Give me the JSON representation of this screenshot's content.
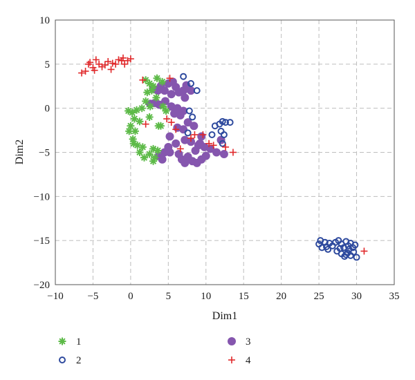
{
  "chart_data": {
    "type": "scatter",
    "title": "",
    "xlabel": "Dim1",
    "ylabel": "Dim2",
    "xlim": [
      -10,
      35
    ],
    "ylim": [
      -20,
      10
    ],
    "xticks": [
      -10,
      -5,
      0,
      5,
      10,
      15,
      20,
      25,
      30,
      35
    ],
    "yticks": [
      -20,
      -15,
      -10,
      -5,
      0,
      5,
      10
    ],
    "xtick_labels": [
      "−10",
      "−5",
      "0",
      "5",
      "10",
      "15",
      "20",
      "25",
      "30",
      "35"
    ],
    "ytick_labels": [
      "−20",
      "−15",
      "−10",
      "−5",
      "0",
      "5",
      "10"
    ],
    "grid": true,
    "legend_position": "below",
    "series": [
      {
        "name": "1",
        "marker": "asterisk",
        "color": "#5dba48",
        "points": [
          [
            2.0,
            3.2
          ],
          [
            2.5,
            2.8
          ],
          [
            3.0,
            2.5
          ],
          [
            3.5,
            3.4
          ],
          [
            4.2,
            3.0
          ],
          [
            2.2,
            1.8
          ],
          [
            2.8,
            2.0
          ],
          [
            3.4,
            1.2
          ],
          [
            2.0,
            0.8
          ],
          [
            2.6,
            0.2
          ],
          [
            1.5,
            0.0
          ],
          [
            0.8,
            -0.2
          ],
          [
            0.2,
            -0.5
          ],
          [
            -0.3,
            -0.3
          ],
          [
            0.5,
            -1.2
          ],
          [
            1.2,
            -1.5
          ],
          [
            0.0,
            -2.0
          ],
          [
            0.6,
            -2.6
          ],
          [
            -0.2,
            -2.6
          ],
          [
            0.3,
            -3.5
          ],
          [
            0.4,
            -4.0
          ],
          [
            0.9,
            -4.2
          ],
          [
            1.6,
            -4.4
          ],
          [
            1.2,
            -5.0
          ],
          [
            1.8,
            -5.6
          ],
          [
            2.5,
            -5.2
          ],
          [
            3.0,
            -4.6
          ],
          [
            3.6,
            -4.8
          ],
          [
            3.2,
            -5.6
          ],
          [
            3.0,
            -6.0
          ],
          [
            4.0,
            -2.0
          ],
          [
            4.3,
            0.2
          ],
          [
            4.7,
            -0.3
          ],
          [
            2.5,
            -1.0
          ],
          [
            3.7,
            -2.0
          ]
        ]
      },
      {
        "name": "2",
        "marker": "circle-open",
        "color": "#2e4a9e",
        "points": [
          [
            7.0,
            3.6
          ],
          [
            8.0,
            2.8
          ],
          [
            8.8,
            2.0
          ],
          [
            7.8,
            -0.3
          ],
          [
            8.2,
            -1.0
          ],
          [
            7.6,
            -2.8
          ],
          [
            10.8,
            -3.0
          ],
          [
            11.2,
            -2.0
          ],
          [
            11.8,
            -1.8
          ],
          [
            12.2,
            -1.5
          ],
          [
            12.6,
            -1.6
          ],
          [
            13.2,
            -1.6
          ],
          [
            12.0,
            -2.6
          ],
          [
            12.4,
            -3.0
          ],
          [
            12.2,
            -4.0
          ],
          [
            25.0,
            -15.4
          ],
          [
            25.2,
            -15.0
          ],
          [
            25.4,
            -15.8
          ],
          [
            25.8,
            -15.2
          ],
          [
            26.0,
            -15.7
          ],
          [
            26.4,
            -15.3
          ],
          [
            26.8,
            -15.6
          ],
          [
            27.2,
            -15.2
          ],
          [
            27.6,
            -15.0
          ],
          [
            28.0,
            -15.4
          ],
          [
            28.3,
            -15.8
          ],
          [
            28.6,
            -15.1
          ],
          [
            28.9,
            -15.6
          ],
          [
            29.2,
            -15.3
          ],
          [
            29.5,
            -15.8
          ],
          [
            29.8,
            -15.5
          ],
          [
            27.4,
            -16.2
          ],
          [
            28.0,
            -16.5
          ],
          [
            28.4,
            -16.8
          ],
          [
            28.8,
            -16.4
          ],
          [
            29.2,
            -16.7
          ],
          [
            29.6,
            -16.3
          ],
          [
            30.0,
            -16.9
          ],
          [
            29.0,
            -16.0
          ],
          [
            27.8,
            -15.9
          ],
          [
            26.2,
            -16.0
          ],
          [
            28.6,
            -16.6
          ]
        ]
      },
      {
        "name": "3",
        "marker": "circle-filled",
        "color": "#8556ae",
        "points": [
          [
            3.0,
            2.2
          ],
          [
            3.6,
            2.0
          ],
          [
            4.0,
            2.5
          ],
          [
            4.5,
            2.0
          ],
          [
            5.0,
            2.8
          ],
          [
            5.6,
            3.0
          ],
          [
            6.0,
            2.4
          ],
          [
            5.4,
            1.6
          ],
          [
            6.4,
            1.8
          ],
          [
            7.0,
            2.0
          ],
          [
            7.4,
            2.6
          ],
          [
            8.0,
            2.0
          ],
          [
            7.2,
            1.2
          ],
          [
            2.6,
            0.5
          ],
          [
            3.2,
            0.6
          ],
          [
            3.8,
            0.4
          ],
          [
            4.6,
            0.8
          ],
          [
            5.4,
            0.2
          ],
          [
            6.2,
            0.0
          ],
          [
            7.0,
            -0.3
          ],
          [
            6.6,
            -0.8
          ],
          [
            5.8,
            -0.6
          ],
          [
            7.6,
            -1.6
          ],
          [
            8.4,
            -2.0
          ],
          [
            7.0,
            -2.4
          ],
          [
            6.2,
            -2.2
          ],
          [
            5.2,
            -3.2
          ],
          [
            7.2,
            -3.6
          ],
          [
            8.0,
            -3.8
          ],
          [
            9.0,
            -4.2
          ],
          [
            9.8,
            -4.4
          ],
          [
            10.6,
            -4.6
          ],
          [
            11.4,
            -5.0
          ],
          [
            12.4,
            -5.2
          ],
          [
            8.6,
            -4.8
          ],
          [
            6.0,
            -4.0
          ],
          [
            5.0,
            -4.4
          ],
          [
            4.5,
            -5.0
          ],
          [
            3.8,
            -5.4
          ],
          [
            4.2,
            -5.8
          ],
          [
            5.2,
            -5.0
          ],
          [
            6.4,
            -5.2
          ],
          [
            6.8,
            -5.8
          ],
          [
            7.6,
            -5.5
          ],
          [
            7.2,
            -6.2
          ],
          [
            8.2,
            -6.0
          ],
          [
            8.8,
            -6.2
          ],
          [
            9.4,
            -5.8
          ],
          [
            10.0,
            -5.4
          ],
          [
            9.2,
            -4.0
          ],
          [
            9.4,
            -3.2
          ],
          [
            12.0,
            -3.6
          ]
        ]
      },
      {
        "name": "4",
        "marker": "plus",
        "color": "#e0282a",
        "points": [
          [
            -6.5,
            4.0
          ],
          [
            -6.0,
            4.2
          ],
          [
            -5.6,
            5.0
          ],
          [
            -5.0,
            4.6
          ],
          [
            -4.6,
            5.5
          ],
          [
            -4.2,
            5.0
          ],
          [
            -3.8,
            4.7
          ],
          [
            -3.4,
            4.9
          ],
          [
            -3.0,
            5.3
          ],
          [
            -2.6,
            4.4
          ],
          [
            -2.0,
            5.0
          ],
          [
            -1.6,
            5.5
          ],
          [
            -1.2,
            5.4
          ],
          [
            -0.8,
            5.0
          ],
          [
            -0.4,
            5.4
          ],
          [
            0.0,
            5.6
          ],
          [
            -5.4,
            5.2
          ],
          [
            -4.8,
            4.3
          ],
          [
            -2.4,
            5.1
          ],
          [
            -1.0,
            5.7
          ],
          [
            1.6,
            3.2
          ],
          [
            5.2,
            3.4
          ],
          [
            2.0,
            -1.8
          ],
          [
            4.8,
            -1.2
          ],
          [
            5.4,
            -1.6
          ],
          [
            6.0,
            -2.4
          ],
          [
            8.5,
            -3.0
          ],
          [
            9.6,
            -3.0
          ],
          [
            8.0,
            -3.4
          ],
          [
            10.4,
            -4.0
          ],
          [
            11.0,
            -4.2
          ],
          [
            12.6,
            -4.4
          ],
          [
            13.6,
            -5.0
          ],
          [
            6.6,
            -4.6
          ],
          [
            31.0,
            -16.2
          ]
        ]
      }
    ]
  }
}
